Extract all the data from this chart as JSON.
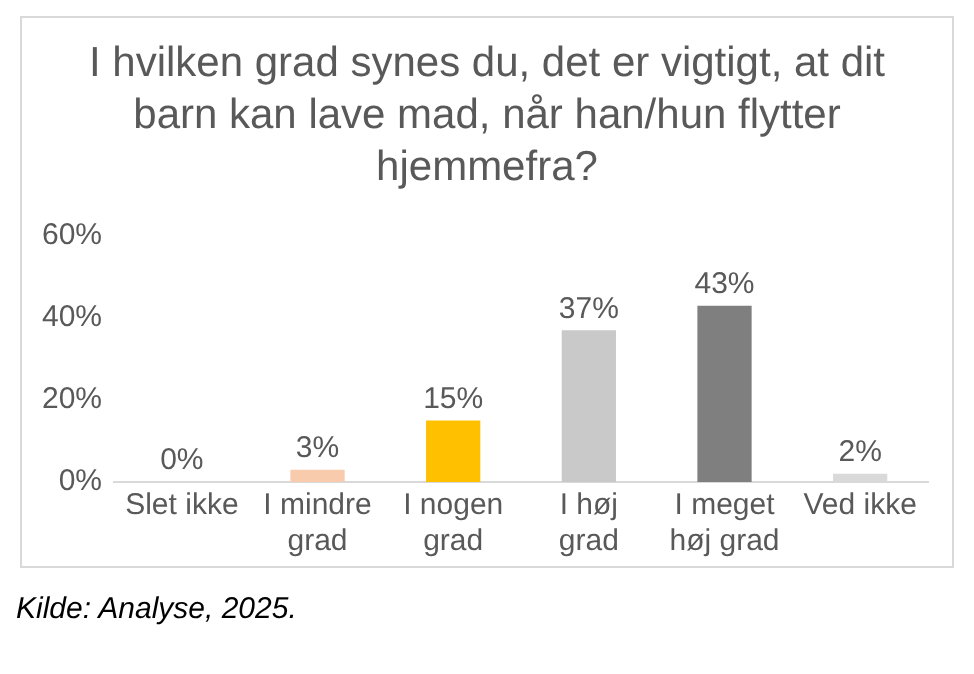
{
  "chart_data": {
    "type": "bar",
    "title": "I hvilken grad synes du, det er vigtigt, at dit barn kan lave mad, når han/hun flytter hjemmefra?",
    "categories": [
      "Slet ikke",
      "I mindre grad",
      "I nogen grad",
      "I høj grad",
      "I meget høj grad",
      "Ved ikke"
    ],
    "values": [
      0,
      3,
      15,
      37,
      43,
      2
    ],
    "colors": [
      "#5b9bd5",
      "#f8cbad",
      "#ffc000",
      "#c9c9c9",
      "#7f7f7f",
      "#d9d9d9"
    ],
    "ylim": [
      0,
      60
    ],
    "yticks": [
      {
        "value": 0,
        "label": "0%"
      },
      {
        "value": 20,
        "label": "20%"
      },
      {
        "value": 40,
        "label": "40%"
      },
      {
        "value": 60,
        "label": "60%"
      }
    ],
    "value_labels": [
      "0%",
      "3%",
      "15%",
      "37%",
      "43%",
      "2%"
    ],
    "grid": false,
    "legend": false,
    "annotations": [
      "Kilde: Analyse, 2025."
    ]
  }
}
